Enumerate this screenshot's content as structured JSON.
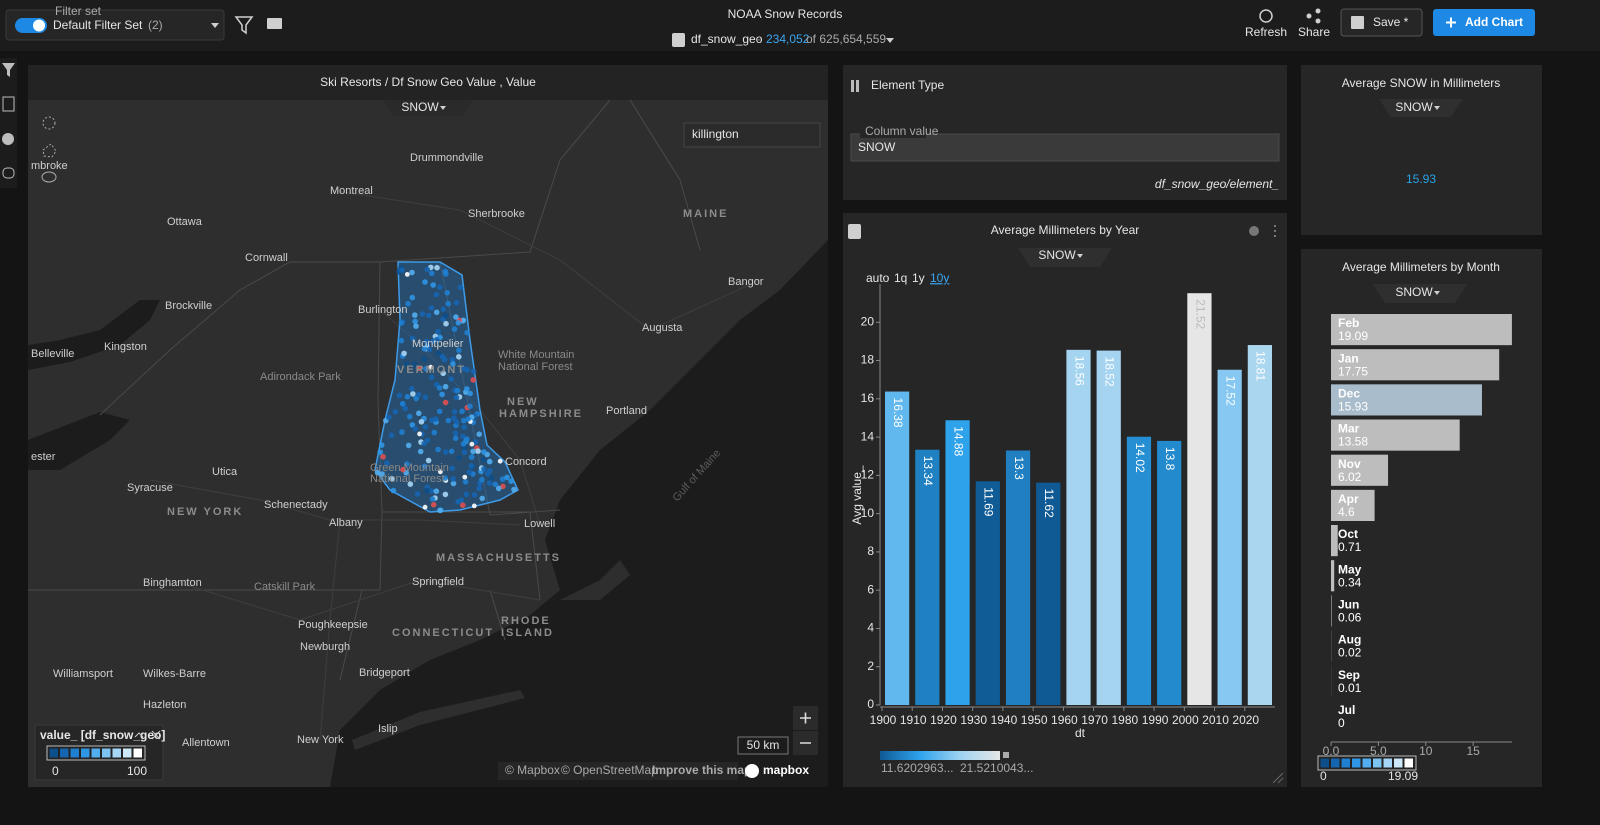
{
  "header": {
    "filter_set_label": "Filter set",
    "filter_set": "Default Filter Set",
    "filter_count": "(2)",
    "title": "NOAA Snow Records",
    "source": "df_snow_geo",
    "separator": "·",
    "row_count": "234,052",
    "row_total": "of 625,654,559",
    "refresh": "Refresh",
    "share": "Share",
    "save": "Save *",
    "add_chart": "Add Chart"
  },
  "map": {
    "title": "Ski Resorts / Df Snow Geo Value , Value",
    "selector": "SNOW",
    "search": "killington",
    "places": [
      "Drummondville",
      "Montreal",
      "Sherbrooke",
      "Ottawa",
      "MAINE",
      "Cornwall",
      "Bangor",
      "Brockville",
      "Burlington",
      "Augusta",
      "Belleville",
      "Kingston",
      "Montpelier",
      "White Mountain",
      "National Forest",
      "Adirondack Park",
      "VERMONT",
      "NEW",
      "HAMPSHIRE",
      "Portland",
      "Utica",
      "Green Mountain",
      "National Forest",
      "Concord",
      "Syracuse",
      "Schenectady",
      "NEW YORK",
      "Albany",
      "Lowell",
      "MASSACHUSETTS",
      "Gulf of Maine",
      "Binghamton",
      "Catskill Park",
      "Springfield",
      "Poughkeepsie",
      "CONNECTICUT",
      "RHODE",
      "ISLAND",
      "Newburgh",
      "Bridgeport",
      "Williamsport",
      "Wilkes-Barre",
      "Hazleton",
      "Allentown",
      "New York",
      "Islip",
      "mbroke",
      "ester"
    ],
    "legend": {
      "title": "value_ [df_snow_geo]",
      "min": 0,
      "max": 100,
      "colors": [
        "#0d4f8a",
        "#1565b0",
        "#1f7fd0",
        "#2f96e6",
        "#52aeee",
        "#7cc3f2",
        "#a6d6f5",
        "#cde8f8",
        "#ffffff"
      ]
    },
    "scale": "50 km",
    "attribution": [
      "© Mapbox",
      "© OpenStreetMap",
      "Improve this map"
    ],
    "logo": "mapbox"
  },
  "filter": {
    "title": "Element Type",
    "field_label": "Column value",
    "field_value": "SNOW",
    "source": "df_snow_geo/element_"
  },
  "kpi": {
    "title": "Average SNOW in Millimeters",
    "selector": "SNOW",
    "value": 15.93,
    "color": "#29a3e8"
  },
  "chart_data": [
    {
      "type": "bar",
      "title": "Average Millimeters by Year",
      "selector": "SNOW",
      "ranges": [
        "auto",
        "1q",
        "1y",
        "10y"
      ],
      "active_range": 3,
      "x_label": "dt",
      "y_label": "Avg value_",
      "x": [
        1900,
        1910,
        1920,
        1930,
        1940,
        1950,
        1960,
        1970,
        1980,
        1990,
        2000,
        2010,
        2020
      ],
      "values": [
        16.38,
        13.34,
        14.88,
        11.69,
        13.3,
        11.62,
        18.56,
        18.52,
        14.02,
        13.8,
        21.52,
        17.52,
        18.81
      ],
      "xlim": [
        1900,
        2030
      ],
      "ylim": [
        0,
        22
      ],
      "yticks": [
        0,
        2,
        4,
        6,
        8,
        10,
        12,
        14,
        16,
        18,
        20
      ],
      "color_scale": {
        "stops": [
          {
            "value": 11.6202963,
            "label": "11.6202963..."
          },
          {
            "value": 21.5210043,
            "label": "21.5210043..."
          }
        ],
        "colors": [
          "#0f5a95",
          "#2ea3ec",
          "#9ed2f2",
          "#e6e6e6"
        ]
      }
    },
    {
      "type": "hbar",
      "title": "Average Millimeters by Month",
      "selector": "SNOW",
      "categories": [
        "Feb",
        "Jan",
        "Dec",
        "Mar",
        "Nov",
        "Apr",
        "Oct",
        "May",
        "Jun",
        "Aug",
        "Sep",
        "Jul"
      ],
      "values": [
        19.09,
        17.75,
        15.93,
        13.58,
        6.02,
        4.6,
        0.71,
        0.34,
        0.06,
        0.02,
        0.01,
        0
      ],
      "colors": [
        "#bdbdbd",
        "#bdbdbd",
        "#a9bccb",
        "#bdbdbd",
        "#bdbdbd",
        "#bdbdbd",
        "#bdbdbd",
        "#bdbdbd",
        "#bdbdbd",
        "#bdbdbd",
        "#bdbdbd",
        "#bdbdbd"
      ],
      "xlim": [
        0,
        19.1
      ],
      "xticks": [
        {
          "value": 0,
          "label": "0.0"
        },
        {
          "value": 5,
          "label": "5.0"
        },
        10,
        15
      ],
      "legend": {
        "min": 0,
        "max": 19.09,
        "colors": [
          "#0d4f8a",
          "#1565b0",
          "#1f7fd0",
          "#2f96e6",
          "#52aeee",
          "#7cc3f2",
          "#a6d6f5",
          "#cde8f8",
          "#ffffff"
        ]
      }
    }
  ]
}
